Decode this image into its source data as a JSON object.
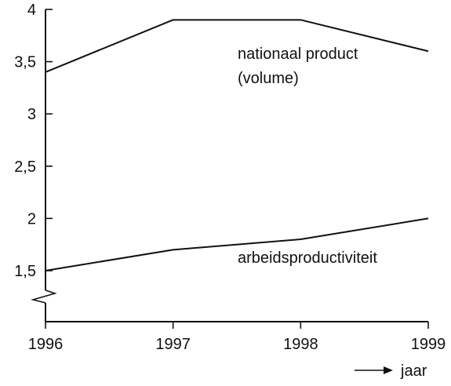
{
  "chart_data": {
    "type": "line",
    "x": [
      1996,
      1997,
      1998,
      1999
    ],
    "x_tick_labels": [
      "1996",
      "1997",
      "1998",
      "1999"
    ],
    "y_tick_values": [
      1.5,
      2,
      2.5,
      3,
      3.5,
      4
    ],
    "y_tick_labels": [
      "1,5",
      "2",
      "2,5",
      "3",
      "3,5",
      "4"
    ],
    "ylim": [
      1.25,
      4
    ],
    "xlim": [
      1996,
      1999
    ],
    "y_axis_break": true,
    "grid": false,
    "xlabel": "jaar",
    "series": [
      {
        "name": "nationaal product (volume)",
        "label_lines": [
          "nationaal product",
          "(volume)"
        ],
        "values": [
          3.4,
          3.9,
          3.9,
          3.6
        ]
      },
      {
        "name": "arbeidsproductiviteit",
        "label_lines": [
          "arbeidsproductiviteit"
        ],
        "values": [
          1.5,
          1.7,
          1.8,
          2.0
        ]
      }
    ]
  }
}
